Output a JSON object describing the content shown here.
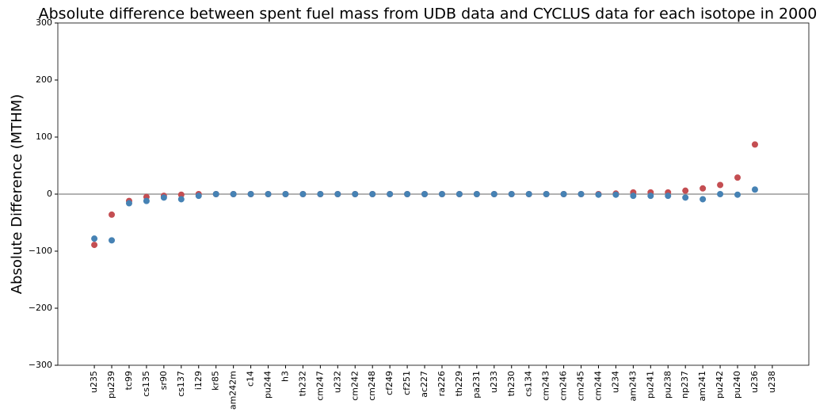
{
  "chart_data": {
    "type": "scatter",
    "title": "Absolute difference between spent fuel mass from UDB data and CYCLUS data for each isotope in 2000",
    "y_label": "Absolute Difference (MTHM)",
    "categories": [
      "u235",
      "pu239",
      "tc99",
      "cs135",
      "sr90",
      "cs137",
      "i129",
      "kr85",
      "am242m",
      "c14",
      "pu244",
      "h3",
      "th232",
      "cm247",
      "u232",
      "cm242",
      "cm248",
      "cf249",
      "cf251",
      "ac227",
      "ra226",
      "th229",
      "pa231",
      "u233",
      "th230",
      "cs134",
      "cm243",
      "cm246",
      "cm245",
      "cm244",
      "u234",
      "am243",
      "pu241",
      "pu238",
      "np237",
      "am241",
      "pu242",
      "pu240",
      "u236",
      "u238"
    ],
    "series": [
      {
        "color": "#c44e52",
        "values": [
          -89,
          -36,
          -12,
          -5,
          -3,
          -1,
          0,
          0,
          0,
          0,
          0,
          0,
          0,
          0,
          0,
          0,
          0,
          0,
          0,
          0,
          0,
          0,
          0,
          0,
          0,
          0,
          0,
          0,
          0,
          0,
          1,
          3,
          3,
          3,
          6,
          10,
          16,
          29,
          87,
          null
        ]
      },
      {
        "color": "#4682b4",
        "values": [
          -78,
          -81,
          -16,
          -12,
          -6,
          -9,
          -3,
          0,
          0,
          0,
          0,
          0,
          0,
          0,
          0,
          0,
          0,
          0,
          0,
          0,
          0,
          0,
          0,
          0,
          0,
          0,
          0,
          0,
          0,
          -1,
          -1,
          -3,
          -3,
          -3,
          -6,
          -9,
          0,
          -1,
          8,
          null
        ]
      }
    ],
    "hline": 0,
    "ylim": [
      -300,
      300
    ],
    "yticks": [
      {
        "value": -300,
        "label": "−300"
      },
      {
        "value": -200,
        "label": "−200"
      },
      {
        "value": -100,
        "label": "−100"
      },
      0,
      100,
      200,
      300
    ]
  }
}
